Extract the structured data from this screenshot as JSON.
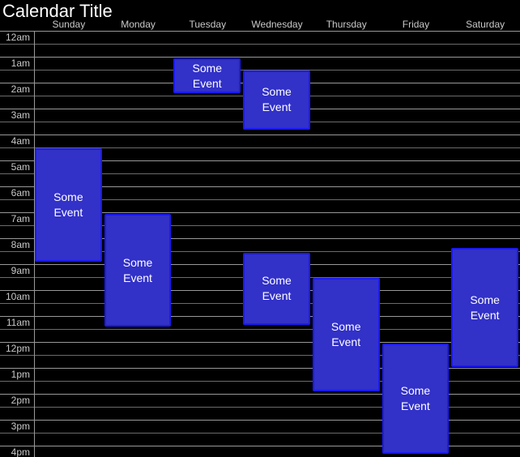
{
  "title": "Calendar Title",
  "days": [
    "Sunday",
    "Monday",
    "Tuesday",
    "Wednesday",
    "Thursday",
    "Friday",
    "Saturday"
  ],
  "time_labels": [
    "12am",
    "1am",
    "2am",
    "3am",
    "4am",
    "5am",
    "6am",
    "7am",
    "8am",
    "9am",
    "10am",
    "11am",
    "12pm",
    "1pm",
    "2pm",
    "3pm",
    "4pm"
  ],
  "events": [
    {
      "day": "Sunday",
      "day_index": 0,
      "title": "Some Event",
      "start_hour": 4.53,
      "end_hour": 8.92
    },
    {
      "day": "Monday",
      "day_index": 1,
      "title": "Some Event",
      "start_hour": 7.05,
      "end_hour": 11.42
    },
    {
      "day": "Tuesday",
      "day_index": 2,
      "title": "Some Event",
      "start_hour": 1.05,
      "end_hour": 2.42
    },
    {
      "day": "Wednesday",
      "day_index": 3,
      "title": "Some Event",
      "start_hour": 1.52,
      "end_hour": 3.8
    },
    {
      "day": "Wednesday",
      "day_index": 3,
      "title": "Some Event",
      "start_hour": 8.55,
      "end_hour": 11.33
    },
    {
      "day": "Thursday",
      "day_index": 4,
      "title": "Some Event",
      "start_hour": 9.53,
      "end_hour": 13.9
    },
    {
      "day": "Friday",
      "day_index": 5,
      "title": "Some Event",
      "start_hour": 12.05,
      "end_hour": 16.3
    },
    {
      "day": "Saturday",
      "day_index": 6,
      "title": "Some Event",
      "start_hour": 8.38,
      "end_hour": 12.97
    }
  ],
  "colors": {
    "background": "#000000",
    "hour_line": "#989898",
    "half_hour_line": "#6b6b6b",
    "gutter_line": "#989898",
    "event_fill": "#3231c8",
    "event_border": "#1b1aef",
    "event_text": "#ffffff",
    "header_text": "#c9c9c9",
    "title_text": "#ffffff"
  }
}
